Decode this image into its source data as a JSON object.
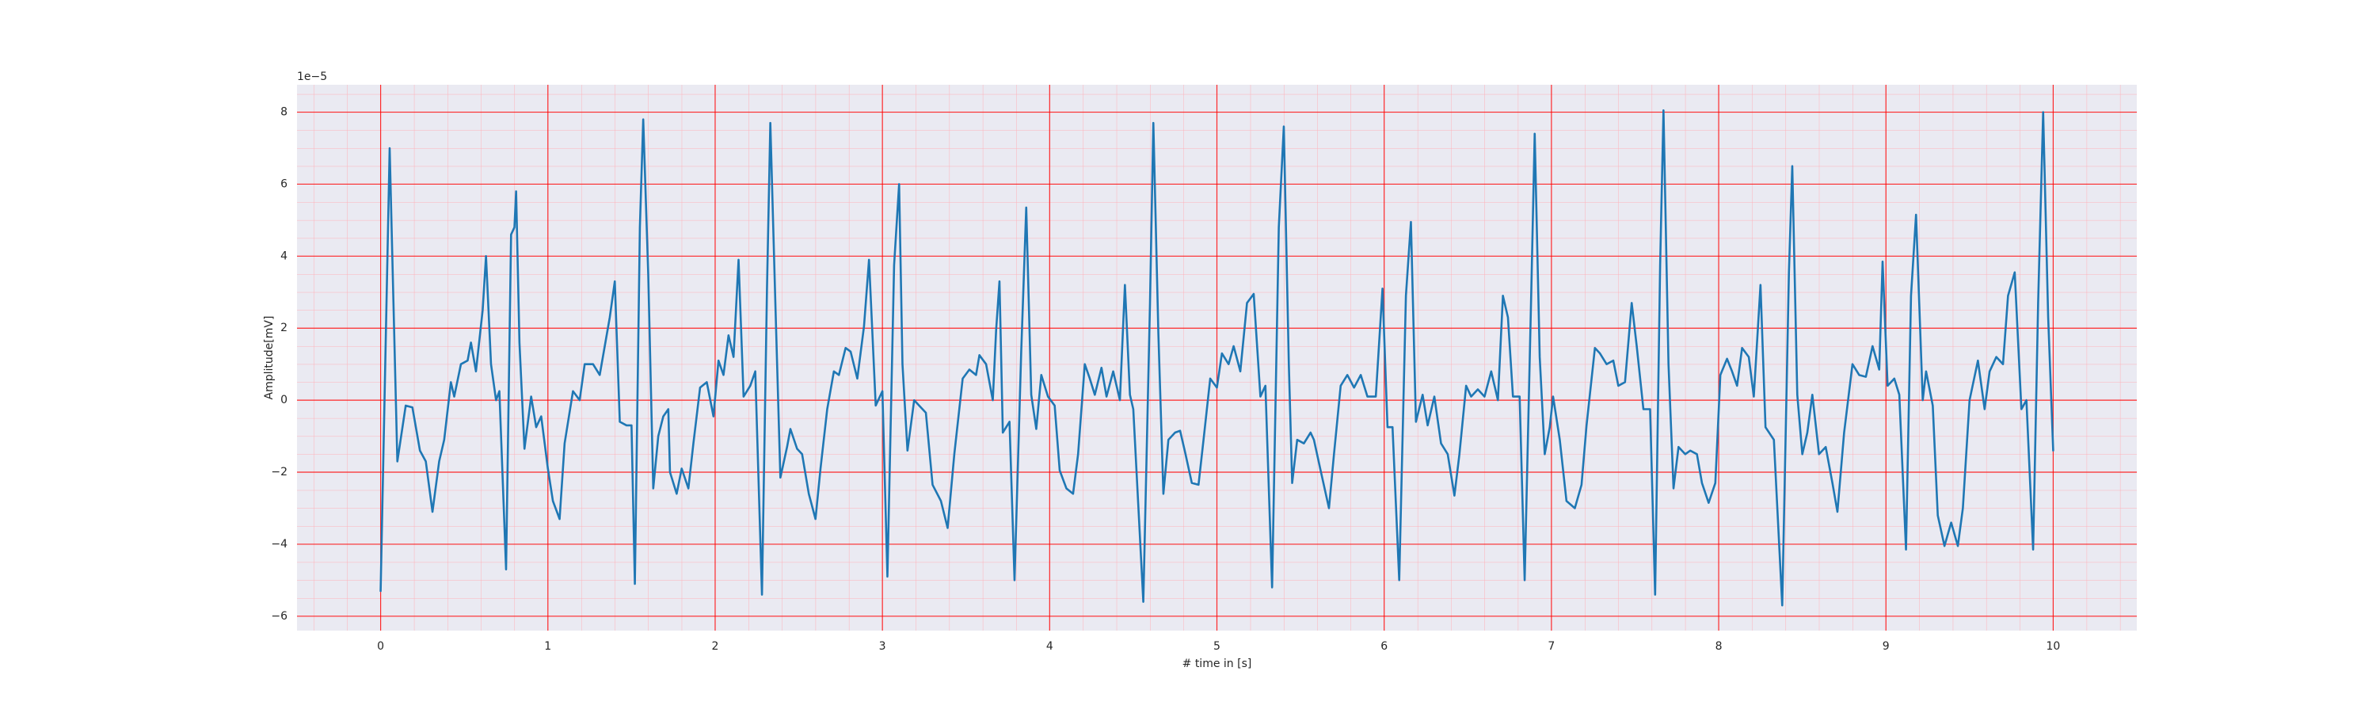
{
  "chart_data": {
    "type": "line",
    "xlabel": "# time in [s]",
    "ylabel": "Amplitude[mV]",
    "y_offset_label": "1e−5",
    "xlim": [
      -0.5,
      10.5
    ],
    "ylim": [
      -6.4,
      8.76
    ],
    "xticks": [
      0,
      1,
      2,
      3,
      4,
      5,
      6,
      7,
      8,
      9,
      10
    ],
    "yticks": [
      {
        "value": -6,
        "label": "−6"
      },
      {
        "value": -4,
        "label": "−4"
      },
      {
        "value": -2,
        "label": "−2"
      },
      0,
      2,
      4,
      6,
      8
    ],
    "grid": true,
    "minor_grid": true,
    "grid_color": "#ff0000",
    "minor_grid_color": "#ffb0b8",
    "background": "#eaeaf2",
    "x": [
      0,
      0.054,
      0.1,
      0.15,
      0.19,
      0.235,
      0.27,
      0.31,
      0.35,
      0.38,
      0.42,
      0.44,
      0.48,
      0.52,
      0.54,
      0.57,
      0.61,
      0.63,
      0.66,
      0.69,
      0.71,
      0.75,
      0.78,
      0.8,
      0.81,
      0.83,
      0.86,
      0.9,
      0.93,
      0.96,
      1.0,
      1.03,
      1.07,
      1.1,
      1.15,
      1.19,
      1.22,
      1.27,
      1.31,
      1.37,
      1.4,
      1.43,
      1.47,
      1.5,
      1.52,
      1.55,
      1.57,
      1.6,
      1.63,
      1.66,
      1.69,
      1.72,
      1.73,
      1.77,
      1.8,
      1.84,
      1.87,
      1.91,
      1.95,
      1.99,
      2.02,
      2.05,
      2.08,
      2.11,
      2.14,
      2.17,
      2.21,
      2.24,
      2.28,
      2.31,
      2.33,
      2.36,
      2.39,
      2.43,
      2.45,
      2.49,
      2.52,
      2.56,
      2.6,
      2.63,
      2.67,
      2.71,
      2.74,
      2.78,
      2.81,
      2.85,
      2.89,
      2.92,
      2.96,
      3.0,
      3.03,
      3.07,
      3.1,
      3.12,
      3.15,
      3.19,
      3.22,
      3.26,
      3.3,
      3.35,
      3.39,
      3.43,
      3.48,
      3.52,
      3.56,
      3.58,
      3.62,
      3.66,
      3.68,
      3.7,
      3.72,
      3.76,
      3.79,
      3.83,
      3.86,
      3.89,
      3.92,
      3.95,
      3.99,
      4.03,
      4.06,
      4.1,
      4.14,
      4.17,
      4.21,
      4.24,
      4.27,
      4.31,
      4.34,
      4.38,
      4.42,
      4.45,
      4.48,
      4.5,
      4.56,
      4.6,
      4.62,
      4.65,
      4.68,
      4.71,
      4.75,
      4.78,
      4.81,
      4.85,
      4.89,
      4.92,
      4.96,
      5.0,
      5.03,
      5.07,
      5.1,
      5.14,
      5.18,
      5.22,
      5.26,
      5.29,
      5.33,
      5.37,
      5.4,
      5.43,
      5.45,
      5.48,
      5.52,
      5.56,
      5.58,
      5.62,
      5.67,
      5.7,
      5.74,
      5.78,
      5.82,
      5.86,
      5.9,
      5.95,
      5.99,
      6.02,
      6.05,
      6.09,
      6.13,
      6.16,
      6.19,
      6.23,
      6.26,
      6.3,
      6.34,
      6.38,
      6.42,
      6.45,
      6.49,
      6.52,
      6.56,
      6.6,
      6.64,
      6.68,
      6.71,
      6.74,
      6.77,
      6.81,
      6.84,
      6.88,
      6.9,
      6.93,
      6.96,
      6.99,
      7.01,
      7.05,
      7.09,
      7.14,
      7.18,
      7.21,
      7.26,
      7.29,
      7.33,
      7.37,
      7.4,
      7.44,
      7.48,
      7.51,
      7.55,
      7.59,
      7.62,
      7.65,
      7.67,
      7.7,
      7.73,
      7.76,
      7.8,
      7.83,
      7.87,
      7.9,
      7.94,
      7.98,
      8.01,
      8.05,
      8.08,
      8.11,
      8.14,
      8.18,
      8.21,
      8.25,
      8.28,
      8.33,
      8.38,
      8.42,
      8.44,
      8.47,
      8.5,
      8.53,
      8.56,
      8.6,
      8.64,
      8.68,
      8.71,
      8.75,
      8.8,
      8.84,
      8.88,
      8.92,
      8.96,
      8.98,
      9.01,
      9.05,
      9.08,
      9.12,
      9.15,
      9.18,
      9.22,
      9.24,
      9.28,
      9.31,
      9.35,
      9.39,
      9.43,
      9.46,
      9.5,
      9.55,
      9.59,
      9.62,
      9.66,
      9.7,
      9.73,
      9.77,
      9.81,
      9.84,
      9.88,
      9.91,
      9.94,
      9.97,
      10.0
    ],
    "series": [
      {
        "color": "#1f77b4",
        "values": [
          -5.3,
          7.0,
          -1.7,
          -0.15,
          -0.2,
          -1.4,
          -1.7,
          -3.1,
          -1.7,
          -1.1,
          0.5,
          0.1,
          1.0,
          1.1,
          1.6,
          0.8,
          2.5,
          4.0,
          1.0,
          0,
          0.25,
          -4.7,
          4.6,
          4.8,
          5.8,
          1.6,
          -1.35,
          0.1,
          -0.75,
          -0.45,
          -1.9,
          -2.8,
          -3.3,
          -1.2,
          0.25,
          0,
          1.0,
          1.0,
          0.7,
          2.3,
          3.3,
          -0.6,
          -0.7,
          -0.7,
          -5.1,
          4.8,
          7.8,
          3.5,
          -2.45,
          -1.0,
          -0.45,
          -0.25,
          -2.0,
          -2.6,
          -1.9,
          -2.45,
          -1.2,
          0.35,
          0.5,
          -0.45,
          1.1,
          0.7,
          1.8,
          1.2,
          3.9,
          0.1,
          0.4,
          0.8,
          -5.4,
          3.1,
          7.7,
          2.7,
          -2.15,
          -1.3,
          -0.8,
          -1.35,
          -1.5,
          -2.6,
          -3.3,
          -1.9,
          -0.25,
          0.8,
          0.7,
          1.45,
          1.35,
          0.6,
          2.05,
          3.9,
          -0.15,
          0.25,
          -4.9,
          3.75,
          6.0,
          1.0,
          -1.4,
          0,
          -0.15,
          -0.35,
          -2.35,
          -2.8,
          -3.55,
          -1.5,
          0.6,
          0.85,
          0.7,
          1.25,
          1.0,
          0,
          1.95,
          3.3,
          -0.9,
          -0.6,
          -5.0,
          1.35,
          5.35,
          0.15,
          -0.8,
          0.7,
          0.1,
          -0.15,
          -1.95,
          -2.45,
          -2.6,
          -1.5,
          1.0,
          0.6,
          0.15,
          0.9,
          0.1,
          0.8,
          0,
          3.2,
          0.15,
          -0.25,
          -5.6,
          2.7,
          7.7,
          1.85,
          -2.6,
          -1.1,
          -0.9,
          -0.85,
          -1.45,
          -2.3,
          -2.35,
          -1.1,
          0.6,
          0.35,
          1.3,
          1.0,
          1.5,
          0.8,
          2.7,
          2.95,
          0.1,
          0.4,
          -5.2,
          4.8,
          7.6,
          1.0,
          -2.3,
          -1.1,
          -1.2,
          -0.9,
          -1.1,
          -1.95,
          -3.0,
          -1.5,
          0.4,
          0.7,
          0.35,
          0.7,
          0.1,
          0.1,
          3.1,
          -0.75,
          -0.75,
          -5.0,
          2.9,
          4.95,
          -0.6,
          0.15,
          -0.7,
          0.1,
          -1.2,
          -1.5,
          -2.65,
          -1.5,
          0.4,
          0.1,
          0.3,
          0.1,
          0.8,
          0,
          2.9,
          2.3,
          0.1,
          0.1,
          -5.0,
          3.1,
          7.4,
          1.2,
          -1.5,
          -0.75,
          0.1,
          -1.1,
          -2.8,
          -3.0,
          -2.35,
          -0.7,
          1.45,
          1.3,
          1.0,
          1.1,
          0.4,
          0.5,
          2.7,
          1.5,
          -0.25,
          -0.25,
          -5.4,
          3.75,
          8.05,
          1.0,
          -2.45,
          -1.3,
          -1.5,
          -1.4,
          -1.5,
          -2.3,
          -2.85,
          -2.3,
          0.7,
          1.15,
          0.8,
          0.4,
          1.45,
          1.2,
          0.1,
          3.2,
          -0.75,
          -1.1,
          -5.7,
          3.55,
          6.5,
          0.15,
          -1.5,
          -0.9,
          0.15,
          -1.5,
          -1.3,
          -2.3,
          -3.1,
          -0.9,
          1.0,
          0.7,
          0.65,
          1.5,
          0.85,
          3.85,
          0.4,
          0.6,
          0.15,
          -4.15,
          2.9,
          5.15,
          0,
          0.8,
          -0.15,
          -3.2,
          -4.05,
          -3.4,
          -4.05,
          -3.0,
          0,
          1.1,
          -0.25,
          0.8,
          1.2,
          1.0,
          2.9,
          3.55,
          -0.25,
          0,
          -4.15,
          2.7,
          8.0,
          2.3,
          -1.4
        ]
      }
    ]
  }
}
